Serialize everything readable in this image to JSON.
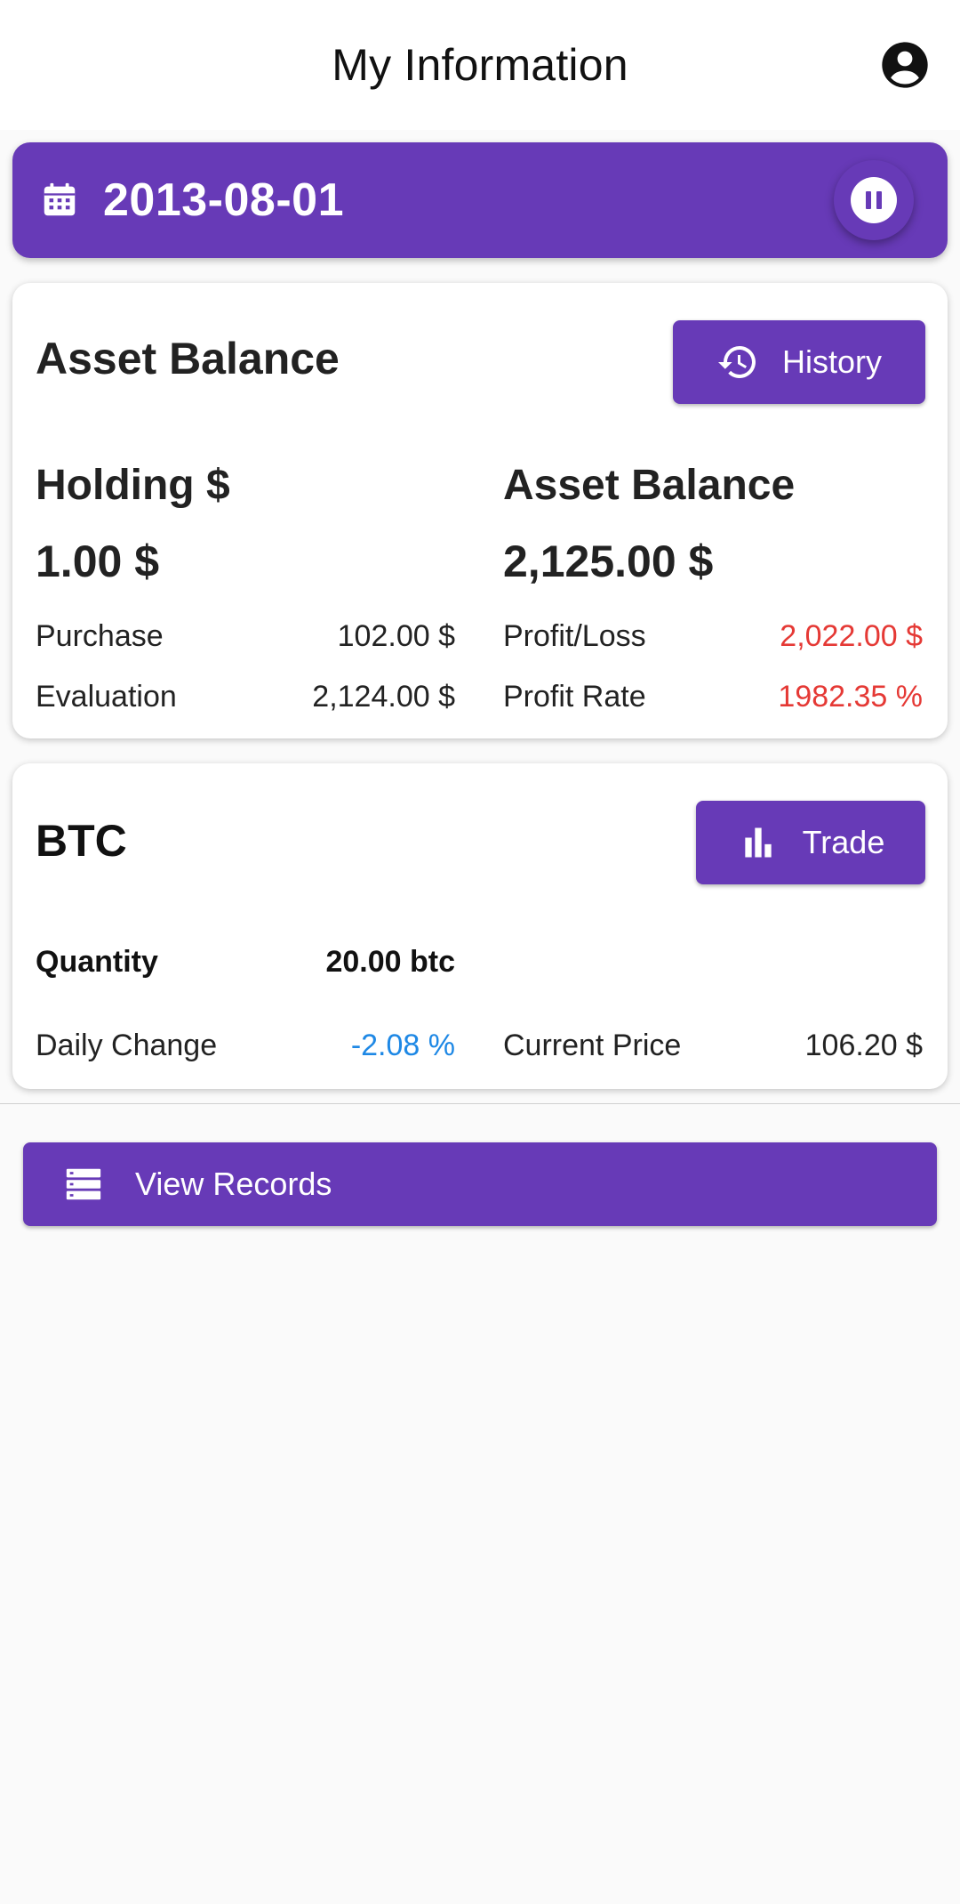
{
  "app_bar": {
    "title": "My Information",
    "account_icon": "account-circle-icon"
  },
  "date_banner": {
    "date": "2013-08-01",
    "calendar_icon": "calendar-icon",
    "pause_icon": "pause-icon"
  },
  "asset_card": {
    "title": "Asset Balance",
    "history_button": {
      "label": "History",
      "icon": "history-icon"
    },
    "holding": {
      "heading": "Holding $",
      "value": "1.00 $",
      "purchase_label": "Purchase",
      "purchase_value": "102.00 $",
      "evaluation_label": "Evaluation",
      "evaluation_value": "2,124.00 $"
    },
    "balance": {
      "heading": "Asset Balance",
      "value": "2,125.00 $",
      "profit_loss_label": "Profit/Loss",
      "profit_loss_value": "2,022.00 $",
      "profit_rate_label": "Profit Rate",
      "profit_rate_value": "1982.35 %"
    }
  },
  "btc_card": {
    "title": "BTC",
    "trade_button": {
      "label": "Trade",
      "icon": "bar-chart-icon"
    },
    "quantity_label": "Quantity",
    "quantity_value": "20.00 btc",
    "daily_change_label": "Daily Change",
    "daily_change_value": "-2.08 %",
    "current_price_label": "Current Price",
    "current_price_value": "106.20 $"
  },
  "records_button": {
    "label": "View Records",
    "icon": "list-icon"
  },
  "colors": {
    "primary": "#673ab7",
    "negative": "#e53935",
    "change": "#1e88e5",
    "background": "#fafafa"
  }
}
